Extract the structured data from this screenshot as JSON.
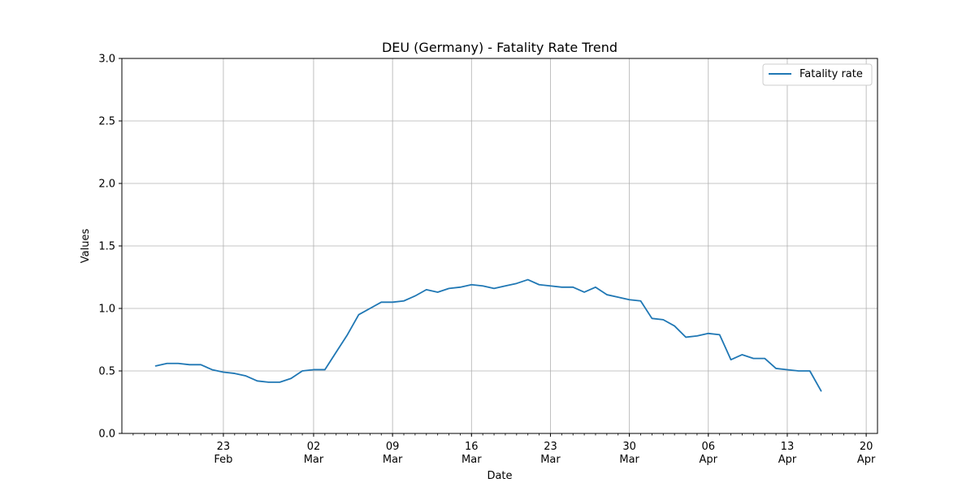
{
  "chart_data": {
    "type": "line",
    "title": "DEU (Germany) - Fatality Rate Trend",
    "xlabel": "Date",
    "ylabel": "Values",
    "ylim": [
      0,
      3.0
    ],
    "xlim": [
      "2020-02-14",
      "2020-04-21"
    ],
    "grid": true,
    "legend_position": "top-right",
    "y_ticks": [
      "0.0",
      "0.5",
      "1.0",
      "1.5",
      "2.0",
      "2.5",
      "3.0"
    ],
    "x_ticks": [
      {
        "date": "2020-02-23",
        "day": "23",
        "month": "Feb"
      },
      {
        "date": "2020-03-02",
        "day": "02",
        "month": "Mar"
      },
      {
        "date": "2020-03-09",
        "day": "09",
        "month": "Mar"
      },
      {
        "date": "2020-03-16",
        "day": "16",
        "month": "Mar"
      },
      {
        "date": "2020-03-23",
        "day": "23",
        "month": "Mar"
      },
      {
        "date": "2020-03-30",
        "day": "30",
        "month": "Mar"
      },
      {
        "date": "2020-04-06",
        "day": "06",
        "month": "Apr"
      },
      {
        "date": "2020-04-13",
        "day": "13",
        "month": "Apr"
      },
      {
        "date": "2020-04-20",
        "day": "20",
        "month": "Apr"
      }
    ],
    "x": [
      "2020-02-17",
      "2020-02-18",
      "2020-02-19",
      "2020-02-20",
      "2020-02-21",
      "2020-02-22",
      "2020-02-23",
      "2020-02-24",
      "2020-02-25",
      "2020-02-26",
      "2020-02-27",
      "2020-02-28",
      "2020-02-29",
      "2020-03-01",
      "2020-03-02",
      "2020-03-03",
      "2020-03-04",
      "2020-03-05",
      "2020-03-06",
      "2020-03-07",
      "2020-03-08",
      "2020-03-09",
      "2020-03-10",
      "2020-03-11",
      "2020-03-12",
      "2020-03-13",
      "2020-03-14",
      "2020-03-15",
      "2020-03-16",
      "2020-03-17",
      "2020-03-18",
      "2020-03-19",
      "2020-03-20",
      "2020-03-21",
      "2020-03-22",
      "2020-03-23",
      "2020-03-24",
      "2020-03-25",
      "2020-03-26",
      "2020-03-27",
      "2020-03-28",
      "2020-03-29",
      "2020-03-30",
      "2020-03-31",
      "2020-04-01",
      "2020-04-02",
      "2020-04-03",
      "2020-04-04",
      "2020-04-05",
      "2020-04-06",
      "2020-04-07",
      "2020-04-08",
      "2020-04-09",
      "2020-04-10",
      "2020-04-11",
      "2020-04-12",
      "2020-04-13",
      "2020-04-14",
      "2020-04-15",
      "2020-04-16",
      "2020-04-17",
      "2020-04-18",
      "2020-04-19"
    ],
    "series": [
      {
        "name": "Fatality rate",
        "color": "#1f77b4",
        "values": [
          0.54,
          0.56,
          0.56,
          0.55,
          0.55,
          0.51,
          0.49,
          0.48,
          0.46,
          0.42,
          0.41,
          0.41,
          0.44,
          0.5,
          0.51,
          0.51,
          0.65,
          0.79,
          0.95,
          1.0,
          1.05,
          1.05,
          1.06,
          1.1,
          1.15,
          1.13,
          1.16,
          1.17,
          1.19,
          1.18,
          1.16,
          1.18,
          1.2,
          1.23,
          1.19,
          1.18,
          1.17,
          1.17,
          1.13,
          1.17,
          1.11,
          1.09,
          1.07,
          1.06,
          0.92,
          0.91,
          0.86,
          0.77,
          0.78,
          0.8,
          0.79,
          0.59,
          0.63,
          0.6,
          0.6,
          0.52,
          0.51,
          0.5,
          0.5,
          0.34,
          null,
          null,
          null
        ]
      }
    ]
  }
}
